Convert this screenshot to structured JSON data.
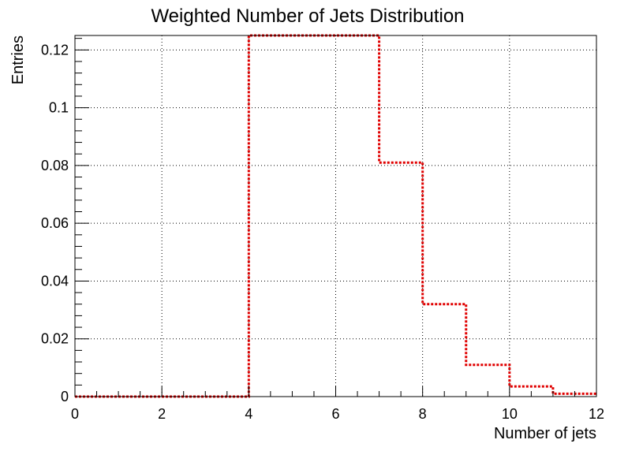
{
  "chart_data": {
    "type": "histogram-step",
    "title": "Weighted Number of Jets Distribution",
    "xlabel": "Number of jets",
    "ylabel": "Entries",
    "xlim": [
      0,
      12
    ],
    "ylim": [
      0,
      0.125
    ],
    "x_ticks": [
      0,
      2,
      4,
      6,
      8,
      10,
      12
    ],
    "x_tick_labels": [
      "0",
      "2",
      "4",
      "6",
      "8",
      "10",
      "12"
    ],
    "y_ticks": [
      0,
      0.02,
      0.04,
      0.06,
      0.08,
      0.1,
      0.12
    ],
    "y_tick_labels": [
      "0",
      "0.02",
      "0.04",
      "0.06",
      "0.08",
      "0.1",
      "0.12"
    ],
    "grid": true,
    "line_style": "dotted",
    "series": [
      {
        "color": "#e00000",
        "bin_edges": [
          0,
          1,
          2,
          3,
          4,
          5,
          6,
          7,
          8,
          9,
          10,
          11,
          12
        ],
        "values": [
          0,
          0,
          0,
          0,
          0.125,
          0.125,
          0.125,
          0.081,
          0.032,
          0.011,
          0.0035,
          0.001
        ]
      }
    ]
  }
}
